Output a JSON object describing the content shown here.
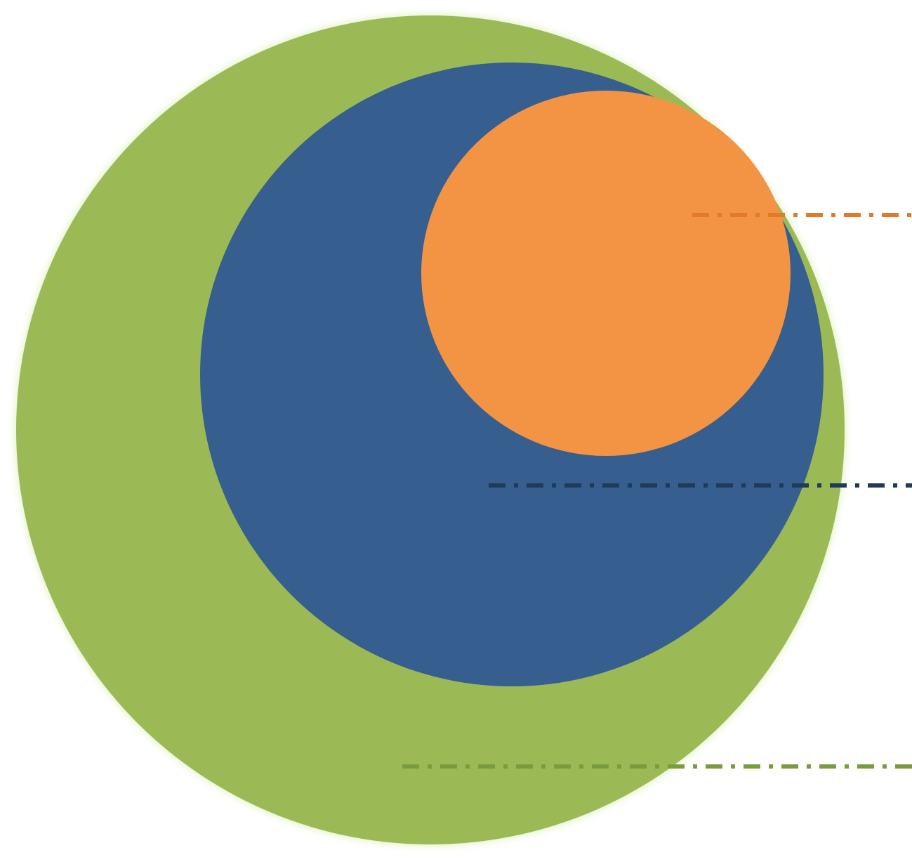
{
  "diagram": {
    "colors": {
      "outer_circle_fill": "#9bba55",
      "outer_circle_glow": "#d9efb0",
      "middle_circle_fill": "#365e8f",
      "inner_circle_fill": "#f29444",
      "inner_leader_line": "#e37a2a",
      "middle_leader_line": "#1f3b5c",
      "outer_leader_line": "#7a9c3e"
    }
  }
}
